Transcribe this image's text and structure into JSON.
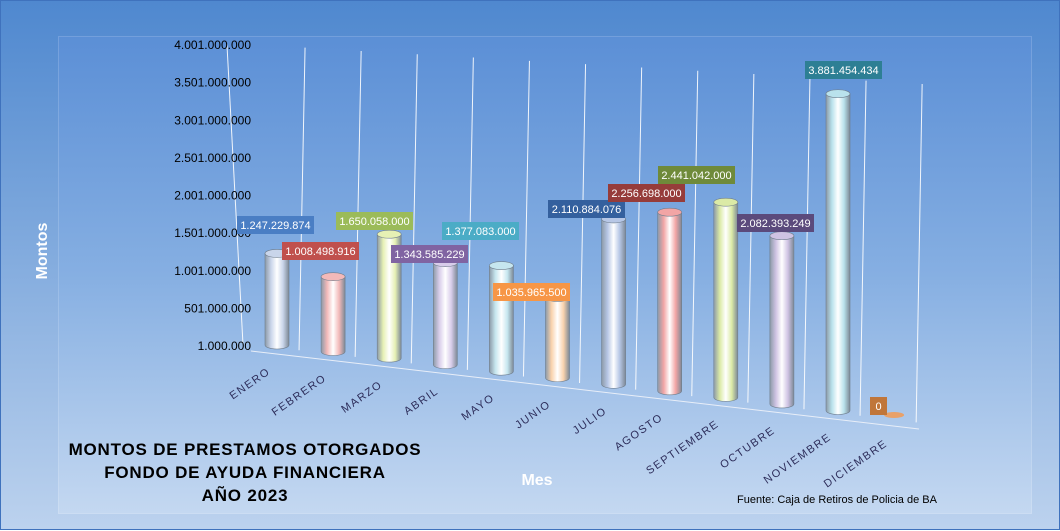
{
  "chart_data": {
    "type": "bar",
    "title_lines": [
      "MONTOS  DE  PRESTAMOS  OTORGADOS",
      "FONDO  DE  AYUDA  FINANCIERA",
      "AÑO   2023"
    ],
    "xlabel": "Mes",
    "ylabel": "Montos",
    "source": "Fuente: Caja de Retiros de Policia de BA",
    "categories": [
      "ENERO",
      "FEBRERO",
      "MARZO",
      "ABRIL",
      "MAYO",
      "JUNIO",
      "JULIO",
      "AGOSTO",
      "SEPTIEMBRE",
      "OCTUBRE",
      "NOVIEMBRE",
      "DICIEMBRE"
    ],
    "values": [
      1247229874,
      1008498916,
      1650058000,
      1343585229,
      1377083000,
      1035965500,
      2110884076,
      2256698000,
      2441042000,
      2082393249,
      3881454434,
      0
    ],
    "value_labels": [
      "1.247.229.874",
      "1.008.498.916",
      "1.650.058.000",
      "1.343.585.229",
      "1.377.083.000",
      "1.035.965.500",
      "2.110.884.076",
      "2.256.698.000",
      "2.441.042.000",
      "2.082.393.249",
      "3.881.454.434",
      "0"
    ],
    "y_ticks": [
      "1.000.000",
      "501.000.000",
      "1.001.000.000",
      "1.501.000.000",
      "2.001.000.000",
      "2.501.000.000",
      "3.001.000.000",
      "3.501.000.000",
      "4.001.000.000"
    ],
    "y_tick_values": [
      1000000,
      501000000,
      1001000000,
      1501000000,
      2001000000,
      2501000000,
      3001000000,
      3501000000,
      4001000000
    ],
    "ylim": [
      1000000,
      4001000000
    ],
    "grid": true,
    "bar_colors": [
      "#c9d5ea",
      "#f3b9b9",
      "#e6f0b4",
      "#d8cdea",
      "#c6e6ef",
      "#f9d2ad",
      "#b7c7e6",
      "#f2a5a5",
      "#dbeaa6",
      "#cfc3e3",
      "#b9e2ec",
      "#e8a16a"
    ],
    "label_colors": [
      "#4a7ec4",
      "#c0504d",
      "#9bbb59",
      "#8064a2",
      "#4bacc6",
      "#f79646",
      "#34609e",
      "#963c3a",
      "#6f8a3a",
      "#5b4a7c",
      "#2d7f94",
      "#c0763a"
    ]
  }
}
